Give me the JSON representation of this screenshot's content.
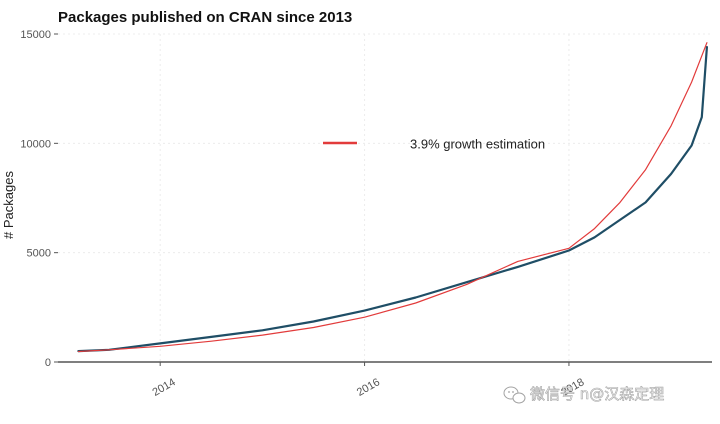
{
  "chart_data": {
    "type": "line",
    "title": "Packages published on CRAN since 2013",
    "xlabel": "",
    "ylabel": "# Packages",
    "xlim": [
      2013.0,
      2019.4
    ],
    "ylim": [
      0,
      15000
    ],
    "yticks": [
      0,
      5000,
      10000,
      15000
    ],
    "ytick_labels": [
      "0",
      "5000",
      "10000",
      "15000"
    ],
    "xticks": [
      2014,
      2016,
      2018
    ],
    "xtick_labels": [
      "2014",
      "2016",
      "2018"
    ],
    "grid": true,
    "legend_position": "top-center",
    "series": [
      {
        "name": "",
        "color": "#1f4e66",
        "x": [
          2013.2,
          2013.5,
          2014.0,
          2014.5,
          2015.0,
          2015.5,
          2016.0,
          2016.5,
          2017.0,
          2017.5,
          2018.0,
          2018.25,
          2018.5,
          2018.75,
          2019.0,
          2019.2,
          2019.3,
          2019.35
        ],
        "y": [
          500,
          560,
          850,
          1150,
          1450,
          1850,
          2350,
          2950,
          3650,
          4350,
          5100,
          5700,
          6500,
          7300,
          8600,
          9900,
          11200,
          14400
        ]
      },
      {
        "name": "3.9% growth estimation",
        "color": "#e23b3b",
        "x": [
          2013.2,
          2013.5,
          2014.0,
          2014.5,
          2015.0,
          2015.5,
          2016.0,
          2016.5,
          2017.0,
          2017.5,
          2018.0,
          2018.25,
          2018.5,
          2018.75,
          2019.0,
          2019.2,
          2019.35
        ],
        "y": [
          480,
          560,
          720,
          950,
          1230,
          1580,
          2050,
          2700,
          3550,
          4600,
          5200,
          6100,
          7300,
          8800,
          10800,
          12800,
          14600
        ]
      }
    ]
  },
  "watermark": {
    "text": "微信号 n@汉森定理",
    "icon": "wechat-icon"
  }
}
